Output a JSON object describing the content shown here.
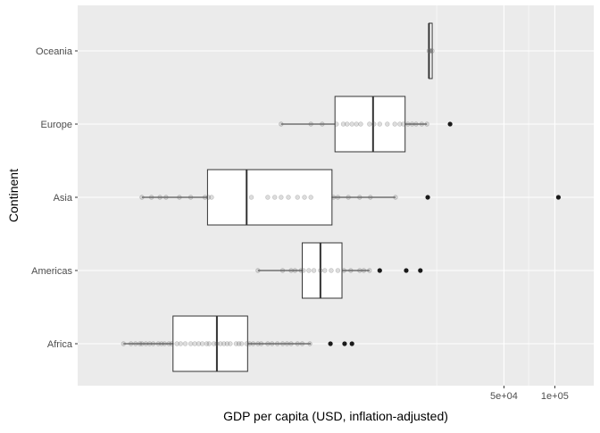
{
  "chart_data": {
    "type": "boxplot",
    "orientation": "horizontal",
    "title": "",
    "xlabel": "GDP per capita (USD, inflation-adjusted)",
    "ylabel": "Continent",
    "x_scale": "log10",
    "xlim": [
      150,
      170000
    ],
    "x_ticks": [
      {
        "value": 50000,
        "label": "5e+04"
      },
      {
        "value": 100000,
        "label": "1e+05"
      }
    ],
    "x_minor_gridlines": [
      20000,
      70000
    ],
    "categories": [
      "Africa",
      "Americas",
      "Asia",
      "Europe",
      "Oceania"
    ],
    "boxes": [
      {
        "category": "Africa",
        "min": 280,
        "q1": 550,
        "median": 1000,
        "q3": 1520,
        "max": 3600,
        "outliers": [
          4700,
          5700,
          6300
        ]
      },
      {
        "category": "Americas",
        "min": 1750,
        "q1": 3200,
        "median": 4100,
        "q3": 5500,
        "max": 8000,
        "outliers": [
          9200,
          13200,
          16000
        ]
      },
      {
        "category": "Asia",
        "min": 360,
        "q1": 880,
        "median": 1500,
        "q3": 4800,
        "max": 11400,
        "outliers": [
          17700,
          105000
        ]
      },
      {
        "category": "Europe",
        "min": 2400,
        "q1": 5000,
        "median": 8400,
        "q3": 13000,
        "max": 17500,
        "outliers": [
          24000
        ]
      },
      {
        "category": "Oceania",
        "min": 18000,
        "q1": 18000,
        "median": 18000,
        "q3": 18800,
        "max": 18800,
        "outliers": []
      }
    ],
    "points": {
      "Africa": [
        280,
        310,
        330,
        350,
        360,
        380,
        400,
        420,
        450,
        470,
        490,
        520,
        540,
        580,
        610,
        650,
        700,
        740,
        780,
        820,
        870,
        900,
        960,
        1000,
        1050,
        1100,
        1150,
        1200,
        1300,
        1350,
        1400,
        1500,
        1560,
        1640,
        1750,
        1830,
        2000,
        2120,
        2280,
        2450,
        2600,
        2750,
        3000,
        3200,
        3550
      ],
      "Americas": [
        1750,
        2450,
        2750,
        2900,
        3150,
        3250,
        3500,
        3750,
        4100,
        4350,
        4750,
        5200,
        5650,
        6200,
        7000,
        7400,
        8000
      ],
      "Asia": [
        360,
        410,
        460,
        500,
        600,
        700,
        850,
        890,
        930,
        1600,
        2000,
        2200,
        2400,
        2650,
        3000,
        3300,
        3600,
        4900,
        5200,
        6000,
        7000,
        8100,
        11400
      ],
      "Europe": [
        2400,
        3600,
        4200,
        5100,
        5600,
        5900,
        6300,
        6700,
        7100,
        8000,
        8500,
        9200,
        10200,
        11300,
        12100,
        12700,
        13500,
        14300,
        15100,
        16300,
        17500
      ],
      "Oceania": [
        18000,
        18200,
        18400,
        18800
      ]
    },
    "grid": true,
    "background": "#ebebeb",
    "gridline_color": "#ffffff",
    "box_fill": "#ffffff",
    "box_stroke": "#333333",
    "point_color": "#666666",
    "outlier_color": "#1a1a1a",
    "legend": "none"
  }
}
